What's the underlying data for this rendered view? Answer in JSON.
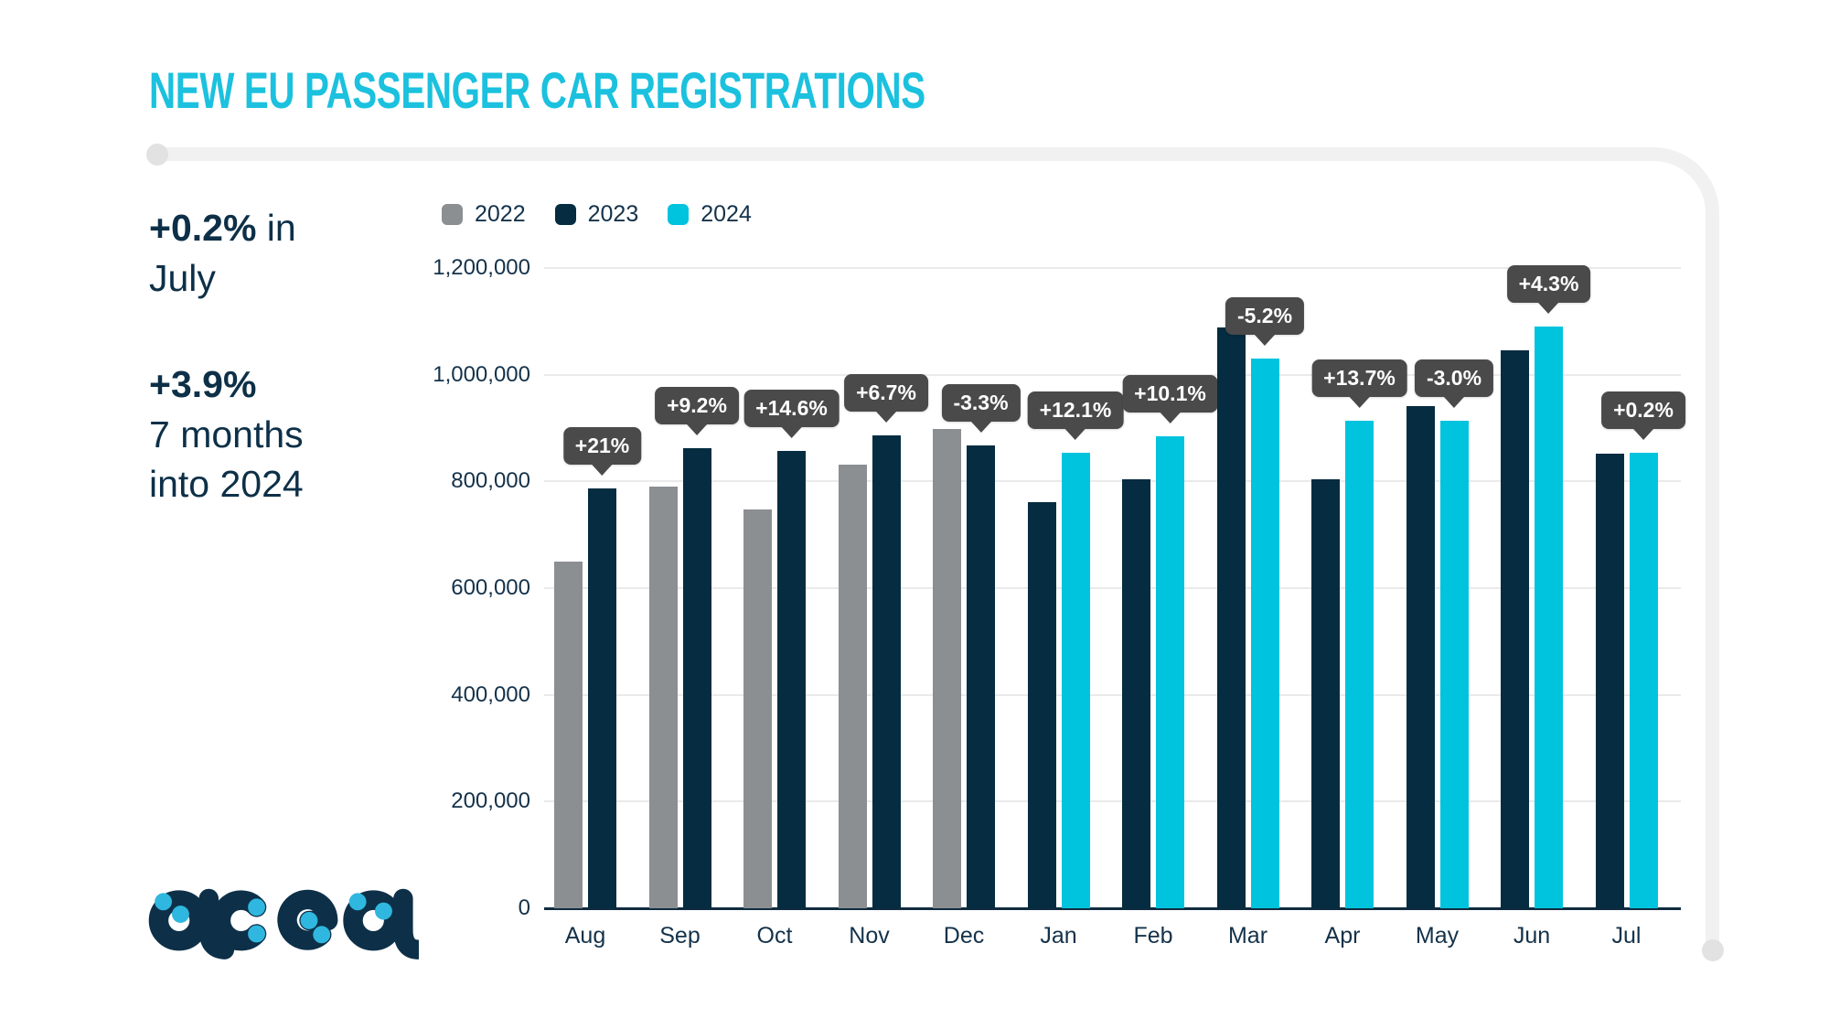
{
  "title": "NEW EU PASSENGER CAR REGISTRATIONS",
  "stats": [
    {
      "lines": [
        [
          {
            "text": "+0.2%",
            "bold": true
          },
          {
            "text": " in",
            "bold": false
          }
        ],
        [
          {
            "text": "July",
            "bold": false
          }
        ]
      ]
    },
    {
      "lines": [
        [
          {
            "text": "+3.9%",
            "bold": true
          }
        ],
        [
          {
            "text": "7 months",
            "bold": false
          }
        ],
        [
          {
            "text": "into 2024",
            "bold": false
          }
        ]
      ]
    }
  ],
  "logo_text": "acea",
  "colors": {
    "accent_cyan": "#1BC1DE",
    "text_navy": "#0D3048",
    "bar_2022": "#8B8F92",
    "bar_2023": "#052C40",
    "bar_2024": "#00C3DE",
    "tooltip_bg": "#4A4A4A",
    "gridline": "#EAEAEA",
    "swoosh": "#F1F1F1",
    "logo_dot": "#2FB7DF"
  },
  "chart_data": {
    "type": "bar",
    "title": "NEW EU PASSENGER CAR REGISTRATIONS",
    "categories": [
      "Aug",
      "Sep",
      "Oct",
      "Nov",
      "Dec",
      "Jan",
      "Feb",
      "Mar",
      "Apr",
      "May",
      "Jun",
      "Jul"
    ],
    "series": [
      {
        "name": "2022",
        "color": "#8B8F92",
        "values": [
          650000,
          790000,
          748000,
          831000,
          898000,
          null,
          null,
          null,
          null,
          null,
          null,
          null
        ]
      },
      {
        "name": "2023",
        "color": "#052C40",
        "values": [
          787000,
          863000,
          857000,
          886000,
          868000,
          761000,
          804000,
          1088000,
          804000,
          941000,
          1046000,
          852000
        ]
      },
      {
        "name": "2024",
        "color": "#00C3DE",
        "values": [
          null,
          null,
          null,
          null,
          null,
          853000,
          885000,
          1031000,
          914000,
          913000,
          1091000,
          854000
        ]
      }
    ],
    "change_labels": [
      "+21%",
      "+9.2%",
      "+14.6%",
      "+6.7%",
      "-3.3%",
      "+12.1%",
      "+10.1%",
      "-5.2%",
      "+13.7%",
      "-3.0%",
      "+4.3%",
      "+0.2%"
    ],
    "ylim": [
      0,
      1200000
    ],
    "yticks": [
      "0",
      "200,000",
      "400,000",
      "600,000",
      "800,000",
      "1,000,000",
      "1,200,000"
    ],
    "grid": true,
    "legend_position": "top-left"
  }
}
